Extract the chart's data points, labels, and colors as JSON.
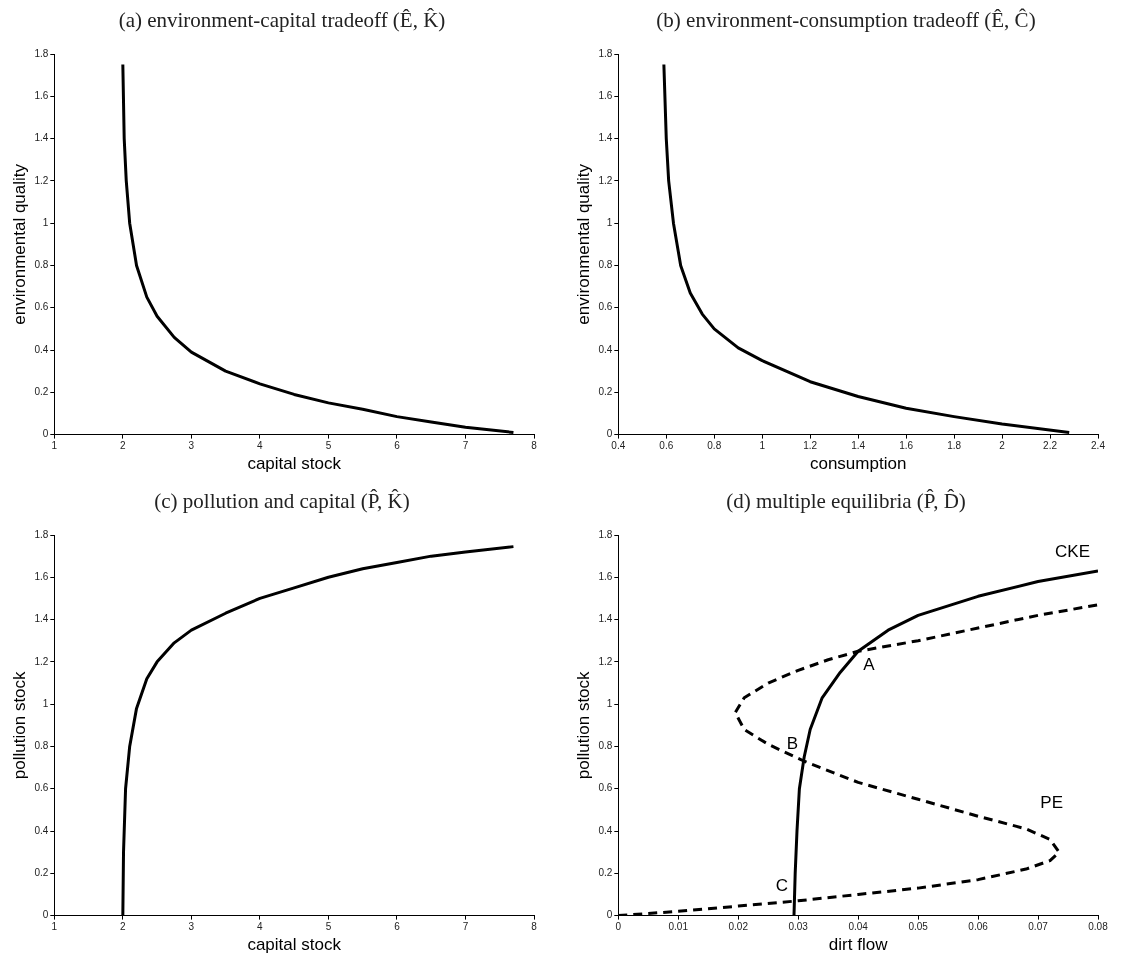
{
  "chart_data": [
    {
      "type": "line",
      "title": "(a) environment-capital tradeoff (Ê, K̂)",
      "xlabel": "capital stock",
      "ylabel": "environmental quality",
      "xlim": [
        1,
        8
      ],
      "xticks": [
        1,
        2,
        3,
        4,
        5,
        6,
        7,
        8
      ],
      "ylim": [
        0,
        1.8
      ],
      "yticks": [
        0,
        0.2,
        0.4,
        0.6,
        0.8,
        1,
        1.2,
        1.4,
        1.6,
        1.8
      ],
      "grid": false,
      "legend": false,
      "marker": "none",
      "series": [
        {
          "color": "#000000",
          "line_style": "solid",
          "x": [
            2.0,
            2.02,
            2.05,
            2.1,
            2.2,
            2.35,
            2.5,
            2.75,
            3,
            3.5,
            4,
            4.5,
            5,
            5.5,
            6,
            6.5,
            7,
            7.7
          ],
          "values": [
            1.75,
            1.4,
            1.2,
            1.0,
            0.8,
            0.65,
            0.56,
            0.46,
            0.39,
            0.3,
            0.24,
            0.19,
            0.15,
            0.12,
            0.085,
            0.06,
            0.035,
            0.01
          ]
        }
      ]
    },
    {
      "type": "line",
      "title": "(b) environment-consumption tradeoff (Ê, Ĉ)",
      "xlabel": "consumption",
      "ylabel": "environmental quality",
      "xlim": [
        0.4,
        2.4
      ],
      "xticks": [
        0.4,
        0.6,
        0.8,
        1,
        1.2,
        1.4,
        1.6,
        1.8,
        2,
        2.2,
        2.4
      ],
      "ylim": [
        0,
        1.8
      ],
      "yticks": [
        0,
        0.2,
        0.4,
        0.6,
        0.8,
        1,
        1.2,
        1.4,
        1.6,
        1.8
      ],
      "grid": false,
      "legend": false,
      "marker": "none",
      "series": [
        {
          "color": "#000000",
          "line_style": "solid",
          "x": [
            0.59,
            0.6,
            0.61,
            0.63,
            0.66,
            0.7,
            0.75,
            0.8,
            0.9,
            1,
            1.2,
            1.4,
            1.6,
            1.8,
            2,
            2.28
          ],
          "values": [
            1.75,
            1.4,
            1.2,
            1.0,
            0.8,
            0.67,
            0.57,
            0.5,
            0.41,
            0.35,
            0.25,
            0.18,
            0.125,
            0.085,
            0.05,
            0.01
          ]
        }
      ]
    },
    {
      "type": "line",
      "title": "(c) pollution and capital (P̂, K̂)",
      "xlabel": "capital stock",
      "ylabel": "pollution stock",
      "xlim": [
        1,
        8
      ],
      "xticks": [
        1,
        2,
        3,
        4,
        5,
        6,
        7,
        8
      ],
      "ylim": [
        0,
        1.8
      ],
      "yticks": [
        0,
        0.2,
        0.4,
        0.6,
        0.8,
        1,
        1.2,
        1.4,
        1.6,
        1.8
      ],
      "grid": false,
      "legend": false,
      "marker": "none",
      "series": [
        {
          "color": "#000000",
          "line_style": "solid",
          "x": [
            2,
            2.01,
            2.04,
            2.1,
            2.2,
            2.35,
            2.5,
            2.75,
            3,
            3.5,
            4,
            4.5,
            5,
            5.5,
            6,
            6.5,
            7,
            7.7
          ],
          "values": [
            0,
            0.3,
            0.6,
            0.8,
            0.98,
            1.12,
            1.2,
            1.29,
            1.35,
            1.43,
            1.5,
            1.55,
            1.6,
            1.64,
            1.67,
            1.7,
            1.72,
            1.745
          ]
        }
      ]
    },
    {
      "type": "line",
      "title": "(d) multiple equilibria (P̂, D̂)",
      "xlabel": "dirt flow",
      "ylabel": "pollution stock",
      "xlim": [
        0,
        0.08
      ],
      "xticks": [
        0,
        0.01,
        0.02,
        0.03,
        0.04,
        0.05,
        0.06,
        0.07,
        0.08
      ],
      "ylim": [
        0,
        1.8
      ],
      "yticks": [
        0,
        0.2,
        0.4,
        0.6,
        0.8,
        1,
        1.2,
        1.4,
        1.6,
        1.8
      ],
      "grid": false,
      "legend": false,
      "marker": "none",
      "series": [
        {
          "name": "CKE",
          "color": "#000000",
          "line_style": "solid",
          "x": [
            0.0293,
            0.0295,
            0.0298,
            0.0302,
            0.031,
            0.032,
            0.034,
            0.037,
            0.04,
            0.045,
            0.05,
            0.06,
            0.07,
            0.08
          ],
          "values": [
            0,
            0.2,
            0.4,
            0.6,
            0.75,
            0.88,
            1.03,
            1.15,
            1.25,
            1.35,
            1.42,
            1.51,
            1.58,
            1.63
          ]
        },
        {
          "name": "PE",
          "color": "#000000",
          "line_style": "dashed",
          "x": [
            0,
            0.01,
            0.02,
            0.03,
            0.04,
            0.05,
            0.06,
            0.068,
            0.072,
            0.0735,
            0.072,
            0.068,
            0.06,
            0.05,
            0.04,
            0.031,
            0.025,
            0.021,
            0.0195,
            0.021,
            0.025,
            0.03,
            0.035,
            0.04,
            0.05,
            0.06,
            0.07,
            0.08
          ],
          "values": [
            0,
            0.02,
            0.045,
            0.07,
            0.1,
            0.13,
            0.17,
            0.22,
            0.26,
            0.3,
            0.36,
            0.41,
            0.47,
            0.55,
            0.63,
            0.73,
            0.81,
            0.88,
            0.96,
            1.03,
            1.1,
            1.16,
            1.21,
            1.25,
            1.3,
            1.36,
            1.42,
            1.47
          ]
        }
      ],
      "annotations": [
        {
          "text": "A",
          "x": 0.0405,
          "y": 1.25
        },
        {
          "text": "B",
          "x": 0.031,
          "y": 0.74
        },
        {
          "text": "C",
          "x": 0.0293,
          "y": 0.07
        }
      ]
    }
  ]
}
